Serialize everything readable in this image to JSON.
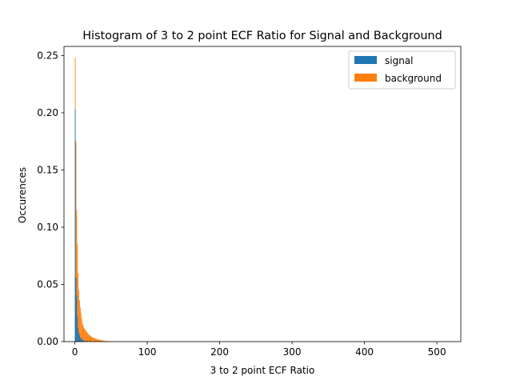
{
  "chart_data": {
    "type": "bar",
    "title": "Histogram of 3 to 2 point ECF Ratio for Signal and Background",
    "xlabel": "3 to 2 point ECF Ratio",
    "ylabel": "Occurences",
    "xlim": [
      -15,
      533
    ],
    "ylim": [
      0,
      0.258
    ],
    "xticks": [
      0,
      100,
      200,
      300,
      400,
      500
    ],
    "yticks": [
      0.0,
      0.05,
      0.1,
      0.15,
      0.2,
      0.25
    ],
    "xtick_labels": [
      "0",
      "100",
      "200",
      "300",
      "400",
      "500"
    ],
    "ytick_labels": [
      "0.00",
      "0.05",
      "0.10",
      "0.15",
      "0.20",
      "0.25"
    ],
    "legend_position": "upper right",
    "series": [
      {
        "name": "background",
        "color": "#ff7f0e",
        "bins": [
          [
            0,
            1,
            0.248
          ],
          [
            1,
            2,
            0.175
          ],
          [
            2,
            3,
            0.115
          ],
          [
            3,
            4,
            0.085
          ],
          [
            4,
            5,
            0.06
          ],
          [
            5,
            6,
            0.045
          ],
          [
            6,
            7,
            0.036
          ],
          [
            7,
            8,
            0.03
          ],
          [
            8,
            9,
            0.025
          ],
          [
            9,
            10,
            0.02
          ],
          [
            10,
            11,
            0.016
          ],
          [
            11,
            12,
            0.014
          ],
          [
            12,
            13,
            0.012
          ],
          [
            13,
            14,
            0.011
          ],
          [
            14,
            15,
            0.0105
          ],
          [
            15,
            16,
            0.0095
          ],
          [
            16,
            17,
            0.0085
          ],
          [
            17,
            18,
            0.0075
          ],
          [
            18,
            19,
            0.0068
          ],
          [
            19,
            20,
            0.006
          ],
          [
            20,
            21,
            0.0055
          ],
          [
            21,
            22,
            0.005
          ],
          [
            22,
            23,
            0.0045
          ],
          [
            23,
            24,
            0.0042
          ],
          [
            24,
            25,
            0.0038
          ],
          [
            25,
            26,
            0.0035
          ],
          [
            26,
            27,
            0.0032
          ],
          [
            27,
            28,
            0.0029
          ],
          [
            28,
            29,
            0.0026
          ],
          [
            29,
            30,
            0.0024
          ],
          [
            30,
            31,
            0.0022
          ],
          [
            31,
            32,
            0.002
          ],
          [
            32,
            33,
            0.0018
          ],
          [
            33,
            34,
            0.0016
          ],
          [
            34,
            35,
            0.0015
          ],
          [
            35,
            36,
            0.0013
          ],
          [
            36,
            37,
            0.0012
          ],
          [
            37,
            38,
            0.0011
          ],
          [
            38,
            39,
            0.001
          ],
          [
            39,
            40,
            0.0009
          ],
          [
            40,
            42,
            0.0007
          ],
          [
            42,
            44,
            0.0005
          ],
          [
            44,
            46,
            0.0004
          ],
          [
            46,
            50,
            0.0003
          ]
        ]
      },
      {
        "name": "signal",
        "color": "#1f77b4",
        "bins": [
          [
            0,
            1,
            0.203
          ],
          [
            1,
            2,
            0.056
          ],
          [
            2,
            3,
            0.04
          ],
          [
            3,
            4,
            0.022
          ],
          [
            4,
            5,
            0.012
          ],
          [
            5,
            6,
            0.008
          ],
          [
            6,
            7,
            0.006
          ],
          [
            7,
            8,
            0.004
          ],
          [
            8,
            9,
            0.003
          ],
          [
            9,
            10,
            0.002
          ],
          [
            10,
            11,
            0.0015
          ],
          [
            11,
            12,
            0.001
          ],
          [
            12,
            14,
            0.0007
          ],
          [
            14,
            16,
            0.0005
          ],
          [
            16,
            18,
            0.0003
          ],
          [
            18,
            22,
            0.0002
          ]
        ]
      }
    ]
  }
}
